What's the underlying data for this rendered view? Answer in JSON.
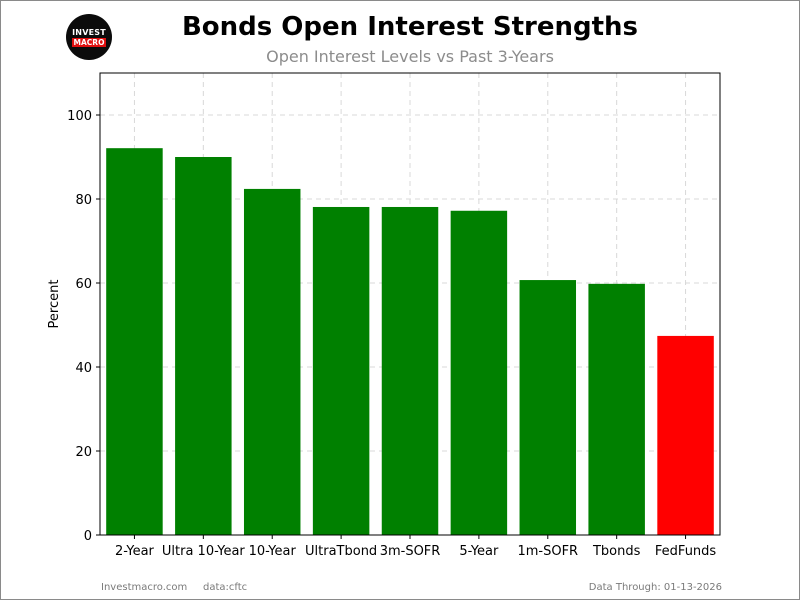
{
  "header": {
    "title": "Bonds Open Interest Strengths",
    "subtitle": "Open Interest Levels vs Past 3-Years"
  },
  "logo": {
    "line1": "INVEST",
    "line2": "MACRO"
  },
  "footer": {
    "site": "Investmacro.com",
    "source": "data:cftc",
    "data_through": "Data Through: 01-13-2026"
  },
  "colors": {
    "positive": "#008000",
    "negative": "#ff0000",
    "grid": "#d8d8d8"
  },
  "chart_data": {
    "type": "bar",
    "title": "Bonds Open Interest Strengths",
    "subtitle": "Open Interest Levels vs Past 3-Years",
    "xlabel": "",
    "ylabel": "Percent",
    "ylim": [
      0,
      110
    ],
    "yticks": [
      0,
      20,
      40,
      60,
      80,
      100
    ],
    "grid": true,
    "categories": [
      "2-Year",
      "Ultra 10-Year",
      "10-Year",
      "UltraTbond",
      "3m-SOFR",
      "5-Year",
      "1m-SOFR",
      "Tbonds",
      "FedFunds"
    ],
    "values": [
      92.1,
      90.0,
      82.4,
      78.1,
      78.1,
      77.2,
      60.7,
      59.8,
      47.4
    ],
    "bar_colors": [
      "#008000",
      "#008000",
      "#008000",
      "#008000",
      "#008000",
      "#008000",
      "#008000",
      "#008000",
      "#ff0000"
    ]
  }
}
